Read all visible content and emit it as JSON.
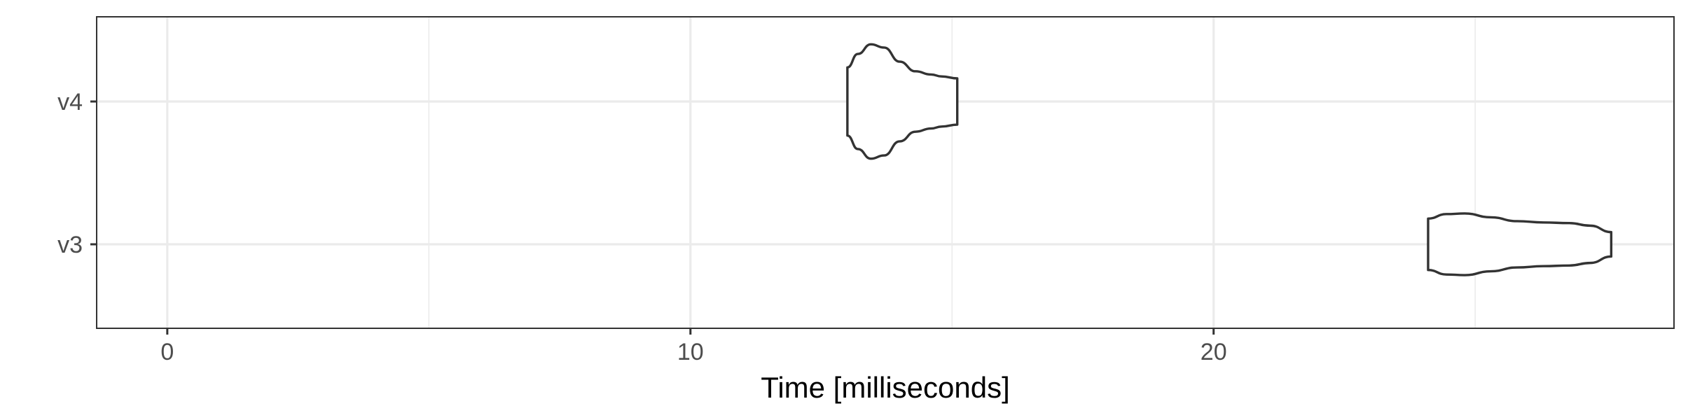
{
  "chart_data": {
    "type": "violin",
    "orientation": "horizontal",
    "title": "",
    "xlabel": "Time [milliseconds]",
    "ylabel": "",
    "xlim": [
      -1.35,
      28.8
    ],
    "x_ticks": [
      0,
      10,
      20
    ],
    "x_tick_labels": [
      "0",
      "10",
      "20"
    ],
    "x_minor_gridlines": [
      5,
      15,
      25
    ],
    "categories": [
      "v3",
      "v4"
    ],
    "grid": true,
    "legend": "none",
    "series": [
      {
        "category": "v4",
        "min": 13.0,
        "max": 15.1,
        "density_profile": [
          [
            13.0,
            0.53
          ],
          [
            13.2,
            0.74
          ],
          [
            13.45,
            0.89
          ],
          [
            13.7,
            0.84
          ],
          [
            14.0,
            0.62
          ],
          [
            14.3,
            0.47
          ],
          [
            14.6,
            0.42
          ],
          [
            14.8,
            0.39
          ],
          [
            15.1,
            0.36
          ]
        ]
      },
      {
        "category": "v3",
        "min": 24.1,
        "max": 27.6,
        "density_profile": [
          [
            24.1,
            0.4
          ],
          [
            24.45,
            0.47
          ],
          [
            24.8,
            0.48
          ],
          [
            25.3,
            0.42
          ],
          [
            25.8,
            0.36
          ],
          [
            26.3,
            0.34
          ],
          [
            26.8,
            0.33
          ],
          [
            27.2,
            0.29
          ],
          [
            27.6,
            0.19
          ]
        ]
      }
    ]
  },
  "style": {
    "panel_border_color": "#333333",
    "grid_color": "#ebebeb",
    "violin_stroke_color": "#333333",
    "tick_label_color": "#4d4d4d"
  }
}
